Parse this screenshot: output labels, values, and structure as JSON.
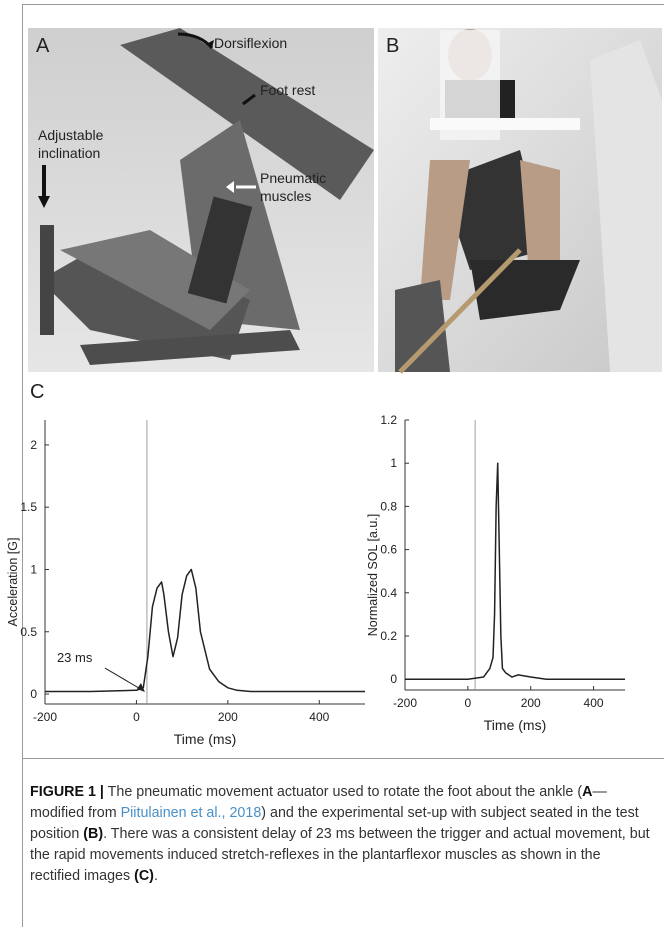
{
  "photos": [
    {
      "label": "A",
      "annotations": [
        {
          "lines": [
            "Dorsiflexion"
          ]
        },
        {
          "lines": [
            "Foot rest"
          ]
        },
        {
          "lines": [
            "Adjustable",
            "inclination"
          ]
        },
        {
          "lines": [
            "Pneumatic",
            "muscles"
          ]
        }
      ]
    },
    {
      "label": "B"
    }
  ],
  "panel_label": "C",
  "chart_data": [
    {
      "type": "line",
      "ylabel": "Acceleration [G]",
      "xlabel": "Time (ms)",
      "color": "#222222",
      "x": [
        -200,
        -100,
        0,
        15,
        25,
        35,
        45,
        55,
        60,
        70,
        80,
        90,
        100,
        110,
        120,
        130,
        140,
        150,
        160,
        170,
        180,
        200,
        220,
        250,
        300,
        400,
        500
      ],
      "values": [
        0.02,
        0.02,
        0.03,
        0.05,
        0.3,
        0.7,
        0.85,
        0.9,
        0.8,
        0.5,
        0.3,
        0.45,
        0.8,
        0.95,
        1.0,
        0.85,
        0.5,
        0.35,
        0.2,
        0.15,
        0.1,
        0.05,
        0.03,
        0.02,
        0.02,
        0.02,
        0.02
      ],
      "xlim": [
        -200,
        500
      ],
      "xticks": [
        -200,
        0,
        200,
        400
      ],
      "ylim": [
        -0.08,
        2.2
      ],
      "yticks": [
        0,
        0.5,
        1,
        1.5,
        2
      ],
      "vline": 23,
      "annotation": {
        "text": "23 ms",
        "x": 23
      }
    },
    {
      "type": "line",
      "ylabel": "Normalized SOL [a.u.]",
      "xlabel": "Time (ms)",
      "color": "#222222",
      "x": [
        -200,
        0,
        50,
        70,
        80,
        85,
        90,
        95,
        100,
        105,
        110,
        120,
        140,
        160,
        200,
        250,
        300,
        400,
        500
      ],
      "values": [
        0,
        0,
        0.01,
        0.05,
        0.1,
        0.3,
        0.8,
        1.0,
        0.6,
        0.2,
        0.05,
        0.03,
        0.01,
        0.02,
        0.01,
        0,
        0,
        0,
        0
      ],
      "xlim": [
        -200,
        500
      ],
      "xticks": [
        -200,
        0,
        200,
        400
      ],
      "ylim": [
        -0.05,
        1.2
      ],
      "yticks": [
        0,
        0.2,
        0.4,
        0.6,
        0.8,
        1,
        1.2
      ],
      "vline": 23
    }
  ],
  "caption": {
    "label": "FIGURE 1  |",
    "parts": [
      " The pneumatic movement actuator used to rotate the foot about the ankle (",
      "A",
      "—modified from ",
      "Piitulainen et al., 2018",
      ") and the experimental set-up with subject seated in the test position ",
      "(B)",
      ". There was a consistent delay of 23 ms between the trigger and actual movement, but the rapid movements induced stretch-reflexes in the plantarflexor muscles as shown in the rectified images ",
      "(C)",
      "."
    ]
  }
}
